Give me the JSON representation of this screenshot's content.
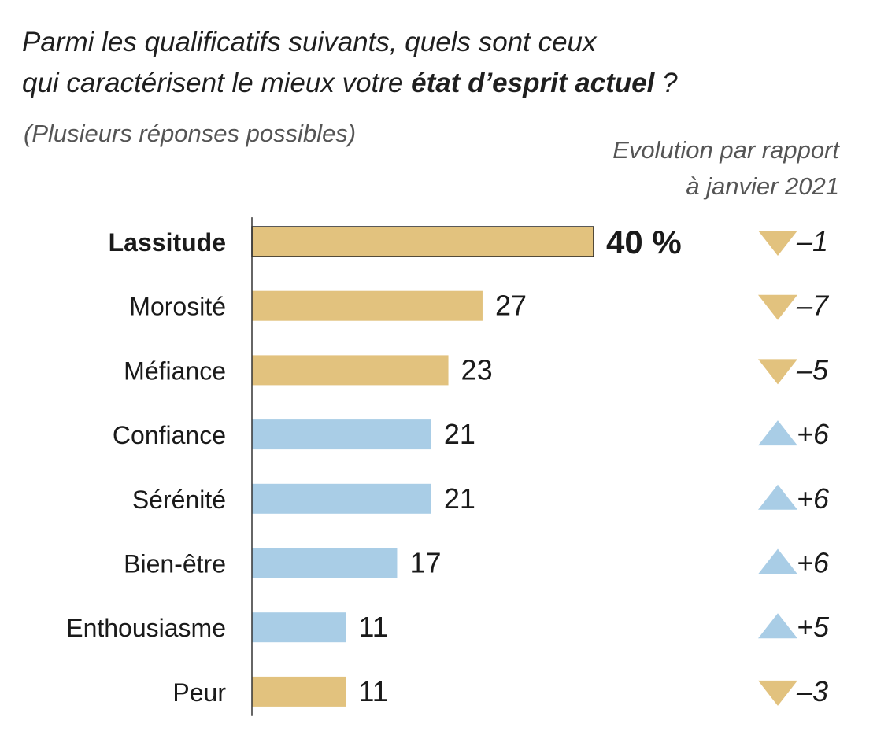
{
  "title": {
    "line1": "Parmi les qualificatifs suivants, quels sont ceux",
    "line2_pre": "qui caractérisent le mieux votre ",
    "line2_bold": "état d’esprit actuel",
    "line2_post": " ?"
  },
  "subtitle": "(Plusieurs réponses possibles)",
  "evolution_header": {
    "line1": "Evolution par rapport",
    "line2": "à janvier 2021"
  },
  "colors": {
    "negative": "#e2c27e",
    "positive": "#a9cde6",
    "axis": "#333333"
  },
  "chart_data": {
    "type": "bar",
    "orientation": "horizontal",
    "unit": "%",
    "categories": [
      "Lassitude",
      "Morosité",
      "Méfiance",
      "Confiance",
      "Sérénité",
      "Bien-être",
      "Enthousiasme",
      "Peur"
    ],
    "values": [
      40,
      27,
      23,
      21,
      21,
      17,
      11,
      11
    ],
    "value_labels": [
      "40 %",
      "27",
      "23",
      "21",
      "21",
      "17",
      "11",
      "11"
    ],
    "changes": [
      -1,
      -7,
      -5,
      6,
      6,
      6,
      5,
      -3
    ],
    "change_labels": [
      "–1",
      "–7",
      "–5",
      "+6",
      "+6",
      "+6",
      "+5",
      "–3"
    ],
    "highlight_index": 0
  }
}
